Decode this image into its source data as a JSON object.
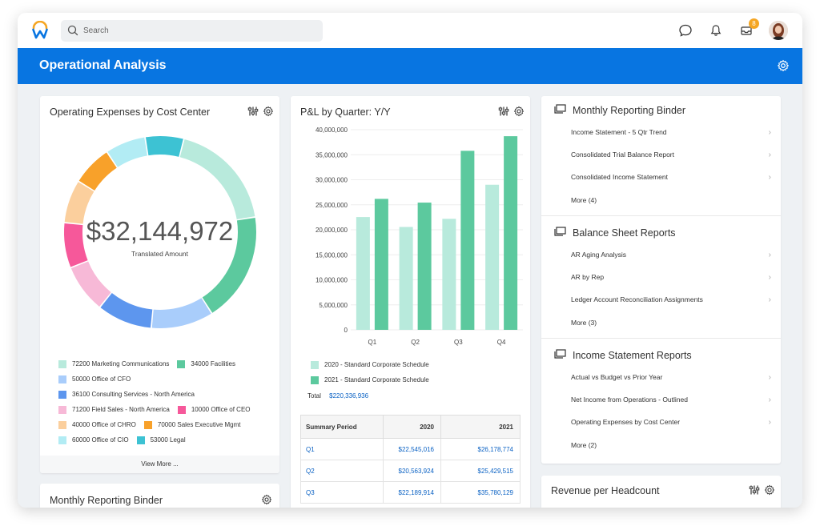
{
  "topbar": {
    "search_placeholder": "Search",
    "inbox_badge": "8"
  },
  "banner": {
    "title": "Operational Analysis"
  },
  "expenses_card": {
    "title": "Operating Expenses by Cost Center",
    "total": "$32,144,972",
    "total_label": "Translated Amount",
    "view_more": "View More ...",
    "legend": [
      {
        "label": "72200 Marketing Communications",
        "color": "#b8eadc"
      },
      {
        "label": "34000 Facilities",
        "color": "#5cc99e"
      },
      {
        "label": "50000 Office of CFO",
        "color": "#a9cdfb"
      },
      {
        "label": "36100 Consulting Services - North America",
        "color": "#5d96ee"
      },
      {
        "label": "71200 Field Sales - North America",
        "color": "#f7b9d7"
      },
      {
        "label": "10000 Office of CEO",
        "color": "#f6589a"
      },
      {
        "label": "40000 Office of CHRO",
        "color": "#fbcf9d"
      },
      {
        "label": "70000 Sales Executive Mgmt",
        "color": "#f8a12a"
      },
      {
        "label": "60000 Office of CIO",
        "color": "#b2ecf4"
      },
      {
        "label": "53000 Legal",
        "color": "#3dc2d3"
      }
    ],
    "slices": [
      {
        "value": 18.5,
        "color": "#b8eadc"
      },
      {
        "value": 18.5,
        "color": "#5cc99e"
      },
      {
        "value": 10.5,
        "color": "#a9cdfb"
      },
      {
        "value": 9.3,
        "color": "#5d96ee"
      },
      {
        "value": 8.2,
        "color": "#f7b9d7"
      },
      {
        "value": 7.6,
        "color": "#f6589a"
      },
      {
        "value": 7.3,
        "color": "#fbcf9d"
      },
      {
        "value": 6.8,
        "color": "#f8a12a"
      },
      {
        "value": 6.8,
        "color": "#b2ecf4"
      },
      {
        "value": 6.5,
        "color": "#3dc2d3"
      }
    ]
  },
  "pl_card": {
    "title": "P&L by Quarter: Y/Y",
    "legend_2020": "2020 - Standard Corporate Schedule",
    "legend_2021": "2021 - Standard Corporate Schedule",
    "total_label": "Total",
    "total_value": "$220,336,936",
    "table": {
      "headers": [
        "Summary Period",
        "2020",
        "2021"
      ],
      "rows": [
        [
          "Q1",
          "$22,545,016",
          "$26,178,774"
        ],
        [
          "Q2",
          "$20,563,924",
          "$25,429,515"
        ],
        [
          "Q3",
          "$22,189,914",
          "$35,780,129"
        ]
      ]
    }
  },
  "chart_data": {
    "type": "bar",
    "title": "P&L by Quarter: Y/Y",
    "categories": [
      "Q1",
      "Q2",
      "Q3",
      "Q4"
    ],
    "series": [
      {
        "name": "2020 - Standard Corporate Schedule",
        "values": [
          22545016,
          20563924,
          22189914,
          29000000
        ],
        "color": "#b8eadc"
      },
      {
        "name": "2021 - Standard Corporate Schedule",
        "values": [
          26178774,
          25429515,
          35780129,
          38700000
        ],
        "color": "#5cc99e"
      }
    ],
    "ylim": [
      0,
      40000000
    ],
    "yticks": [
      "0",
      "5,000,000",
      "10,000,000",
      "15,000,000",
      "20,000,000",
      "25,000,000",
      "30,000,000",
      "35,000,000",
      "40,000,000"
    ],
    "grid": true,
    "legend": "bottom"
  },
  "monthly_card_bottom": {
    "title": "Monthly Reporting Binder"
  },
  "reports": {
    "sections": [
      {
        "title": "Monthly Reporting Binder",
        "items": [
          "Income Statement - 5 Qtr Trend",
          "Consolidated Trial Balance Report",
          "Consolidated Income Statement"
        ],
        "more": "More (4)"
      },
      {
        "title": "Balance Sheet Reports",
        "items": [
          "AR Aging Analysis",
          "AR by Rep",
          "Ledger Account Reconciliation Assignments"
        ],
        "more": "More (3)"
      },
      {
        "title": "Income Statement Reports",
        "items": [
          "Actual vs Budget vs Prior Year",
          "Net Income from Operations - Outlined",
          "Operating Expenses by Cost Center"
        ],
        "more": "More (2)"
      }
    ]
  },
  "revenue_card": {
    "title": "Revenue per Headcount"
  }
}
